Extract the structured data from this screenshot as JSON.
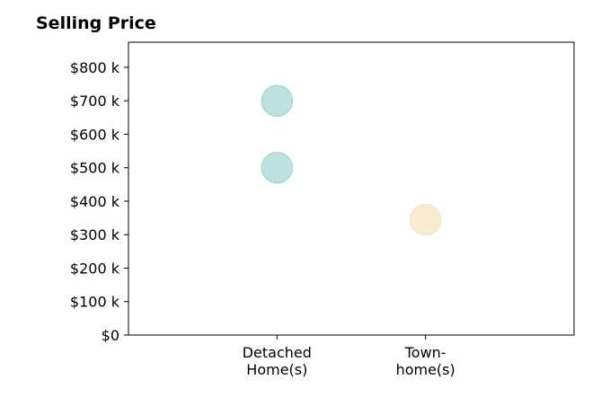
{
  "chart_data": {
    "type": "scatter",
    "title": "Selling Price",
    "xlabel": "",
    "ylabel": "",
    "categories": [
      "Detached\nHome(s)",
      "Town-\nhome(s)"
    ],
    "ylim": [
      0,
      875000
    ],
    "yticks": [
      0,
      100000,
      200000,
      300000,
      400000,
      500000,
      600000,
      700000,
      800000
    ],
    "ytick_labels": [
      "$0",
      "$100 k",
      "$200 k",
      "$300 k",
      "$400 k",
      "$500 k",
      "$600 k",
      "$700 k",
      "$800 k"
    ],
    "grid": false,
    "points": [
      {
        "category": 0,
        "y": 700000,
        "color": "#a8d8d4"
      },
      {
        "category": 0,
        "y": 500000,
        "color": "#a8d8d4"
      },
      {
        "category": 1,
        "y": 345000,
        "color": "#f6e6c4"
      }
    ]
  }
}
